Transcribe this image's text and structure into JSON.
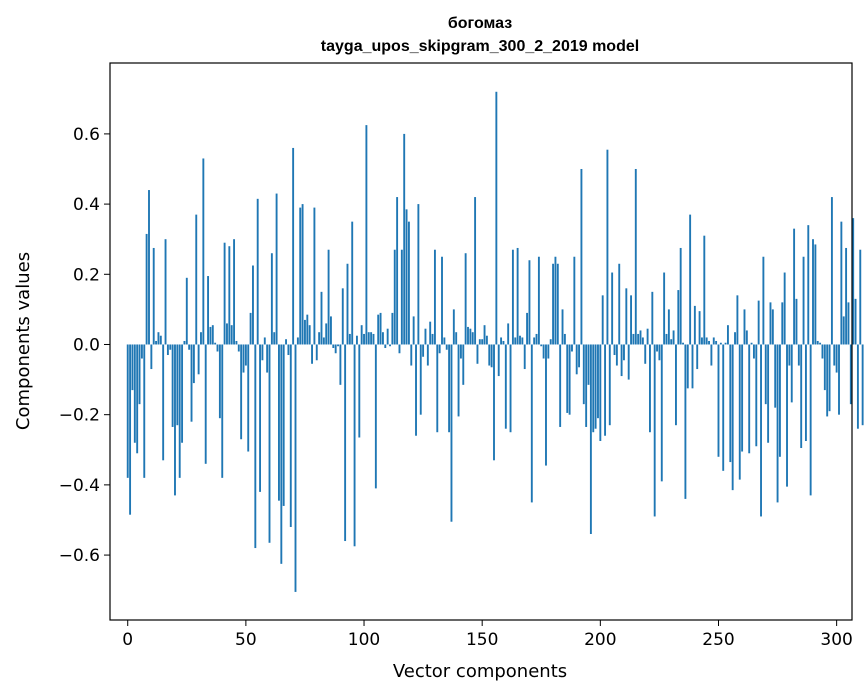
{
  "chart_data": {
    "type": "bar",
    "title": "богомаз",
    "subtitle": "tayga_upos_skipgram_300_2_2019 model",
    "xlabel": "Vector components",
    "ylabel": "Components values",
    "xlim": [
      -7.5,
      306.5
    ],
    "ylim": [
      -0.785,
      0.802
    ],
    "xticks": [
      0,
      50,
      100,
      150,
      200,
      250,
      300
    ],
    "yticks": [
      -0.6,
      -0.4,
      -0.2,
      0.0,
      0.2,
      0.4,
      0.6
    ],
    "ytick_labels": [
      "−0.6",
      "−0.4",
      "−0.2",
      "0.0",
      "0.2",
      "0.4",
      "0.6"
    ],
    "bar_color": "#1f77b4",
    "values": [
      -0.38,
      -0.485,
      -0.13,
      -0.28,
      -0.31,
      -0.17,
      -0.04,
      -0.38,
      0.315,
      0.44,
      -0.07,
      0.275,
      0.01,
      0.035,
      0.025,
      -0.33,
      0.3,
      -0.03,
      -0.015,
      -0.235,
      -0.43,
      -0.23,
      -0.38,
      -0.28,
      0.01,
      0.19,
      -0.015,
      -0.22,
      -0.11,
      0.37,
      -0.085,
      0.035,
      0.53,
      -0.34,
      0.195,
      0.05,
      0.055,
      0.005,
      -0.02,
      -0.21,
      -0.38,
      0.29,
      0.06,
      0.28,
      0.055,
      0.3,
      0.01,
      -0.02,
      -0.27,
      -0.08,
      -0.06,
      -0.305,
      0.09,
      0.225,
      -0.58,
      0.415,
      -0.42,
      -0.045,
      0.02,
      -0.08,
      -0.565,
      0.26,
      0.035,
      0.43,
      -0.445,
      -0.625,
      -0.46,
      0.015,
      -0.03,
      -0.52,
      0.56,
      -0.705,
      0.02,
      0.39,
      0.4,
      0.07,
      0.085,
      0.055,
      -0.055,
      0.39,
      -0.045,
      0.035,
      0.15,
      0.02,
      0.06,
      0.27,
      0.08,
      -0.01,
      -0.025,
      -0.005,
      -0.115,
      0.16,
      -0.56,
      0.23,
      0.03,
      0.35,
      -0.575,
      0.025,
      -0.265,
      0.055,
      0.03,
      0.625,
      0.035,
      0.035,
      0.03,
      -0.41,
      0.085,
      0.09,
      0.035,
      -0.01,
      0.045,
      -0.005,
      0.09,
      0.27,
      0.42,
      -0.025,
      0.27,
      0.6,
      0.385,
      0.35,
      -0.06,
      0.08,
      -0.26,
      0.4,
      -0.2,
      -0.035,
      0.045,
      -0.06,
      0.065,
      0.03,
      0.27,
      -0.25,
      -0.025,
      0.25,
      0.02,
      -0.015,
      -0.25,
      -0.505,
      0.1,
      0.035,
      -0.205,
      -0.04,
      -0.115,
      0.26,
      0.05,
      0.045,
      0.035,
      0.42,
      -0.055,
      0.015,
      0.015,
      0.055,
      0.025,
      -0.06,
      -0.065,
      -0.33,
      0.72,
      -0.09,
      0.02,
      0.01,
      -0.24,
      0.06,
      -0.25,
      0.27,
      0.02,
      0.275,
      0.025,
      0.02,
      -0.07,
      0.09,
      0.24,
      -0.45,
      0.02,
      0.03,
      0.25,
      -0.005,
      -0.04,
      -0.345,
      -0.04,
      0.015,
      0.23,
      0.25,
      0.23,
      -0.235,
      0.1,
      0.03,
      -0.195,
      -0.2,
      -0.02,
      0.25,
      -0.085,
      -0.065,
      0.5,
      -0.17,
      -0.235,
      -0.115,
      -0.54,
      -0.25,
      -0.24,
      -0.21,
      -0.275,
      0.14,
      -0.26,
      0.555,
      -0.23,
      0.205,
      -0.03,
      -0.06,
      0.23,
      -0.09,
      -0.045,
      0.16,
      -0.1,
      0.14,
      0.03,
      0.5,
      0.03,
      0.04,
      0.02,
      -0.055,
      0.045,
      -0.25,
      0.15,
      -0.49,
      -0.02,
      -0.045,
      -0.39,
      0.205,
      0.03,
      0.1,
      0.015,
      0.04,
      -0.23,
      0.155,
      0.275,
      0.005,
      -0.44,
      -0.125,
      0.37,
      -0.125,
      0.11,
      -0.07,
      0.095,
      0.02,
      0.31,
      0.02,
      0.01,
      -0.06,
      0.02,
      0.01,
      -0.32,
      0.005,
      -0.36,
      0.005,
      0.055,
      -0.335,
      -0.415,
      0.035,
      0.14,
      -0.385,
      -0.305,
      0.1,
      0.04,
      -0.31,
      0.005,
      -0.04,
      -0.29,
      0.125,
      -0.49,
      0.25,
      -0.17,
      -0.28,
      0.12,
      0.1,
      -0.18,
      -0.45,
      -0.32,
      0.12,
      0.205,
      -0.405,
      -0.06,
      -0.165,
      0.33,
      0.13,
      -0.06,
      -0.295,
      0.25,
      -0.275,
      0.34,
      -0.43,
      0.3,
      0.285,
      0.01,
      0.005,
      -0.04,
      -0.13,
      -0.205,
      -0.19,
      0.42,
      -0.06,
      -0.08,
      -0.2,
      0.35,
      0.08,
      0.275,
      0.12,
      -0.17,
      0.36,
      0.13,
      -0.24,
      0.27,
      -0.23
    ]
  }
}
